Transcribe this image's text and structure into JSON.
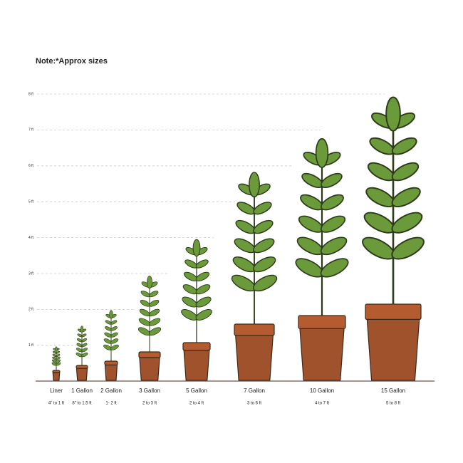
{
  "note": "Note:*Approx sizes",
  "axis_labels": [
    "8 ft",
    "7 ft",
    "6 ft",
    "5 ft",
    "4 ft",
    "3 ft",
    "2 ft",
    "1 ft"
  ],
  "pots": [
    {
      "name": "Liner",
      "range": "4\" to 1 ft"
    },
    {
      "name": "1 Gallon",
      "range": "8\" to 1.5 ft"
    },
    {
      "name": "2 Gallon",
      "range": "1- 2 ft"
    },
    {
      "name": "3 Gallon",
      "range": "2 to 3 ft"
    },
    {
      "name": "5 Gallon",
      "range": "2 to 4 ft"
    },
    {
      "name": "7 Gallon",
      "range": "3 to 6 ft"
    },
    {
      "name": "10 Gallon",
      "range": "4 to 7 ft"
    },
    {
      "name": "15 Gallon",
      "range": "5 to 8 ft"
    }
  ]
}
